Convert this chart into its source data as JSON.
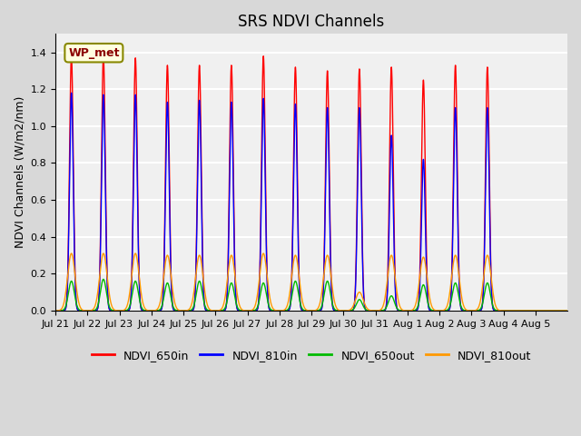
{
  "title": "SRS NDVI Channels",
  "ylabel": "NDVI Channels (W/m2/nm)",
  "xlabel": "",
  "annotation": "WP_met",
  "ylim": [
    0.0,
    1.5
  ],
  "yticks": [
    0.0,
    0.2,
    0.4,
    0.6,
    0.8,
    1.0,
    1.2,
    1.4
  ],
  "background_color": "#d8d8d8",
  "plot_bg_color": "#f0f0f0",
  "colors": {
    "NDVI_650in": "#ff0000",
    "NDVI_810in": "#0000ff",
    "NDVI_650out": "#00bb00",
    "NDVI_810out": "#ff9900"
  },
  "x_tick_labels": [
    "Jul 21",
    "Jul 22",
    "Jul 23",
    "Jul 24",
    "Jul 25",
    "Jul 26",
    "Jul 27",
    "Jul 28",
    "Jul 29",
    "Jul 30",
    "Jul 31",
    "Aug 1",
    "Aug 2",
    "Aug 3",
    "Aug 4",
    "Aug 5"
  ],
  "peaks_650in": [
    1.38,
    1.38,
    1.37,
    1.33,
    1.33,
    1.33,
    1.38,
    1.32,
    1.3,
    1.31,
    1.32,
    1.25,
    1.33,
    1.32
  ],
  "peaks_810in": [
    1.18,
    1.17,
    1.17,
    1.13,
    1.14,
    1.13,
    1.15,
    1.12,
    1.1,
    1.1,
    0.95,
    0.82,
    1.1,
    1.1
  ],
  "peaks_650out": [
    0.16,
    0.17,
    0.16,
    0.15,
    0.16,
    0.15,
    0.15,
    0.16,
    0.16,
    0.06,
    0.08,
    0.14,
    0.15,
    0.15
  ],
  "peaks_810out": [
    0.31,
    0.31,
    0.31,
    0.3,
    0.3,
    0.3,
    0.31,
    0.3,
    0.3,
    0.1,
    0.3,
    0.29,
    0.3,
    0.3
  ],
  "title_fontsize": 12,
  "label_fontsize": 9,
  "tick_fontsize": 8,
  "legend_fontsize": 9,
  "linewidth": 1.0
}
